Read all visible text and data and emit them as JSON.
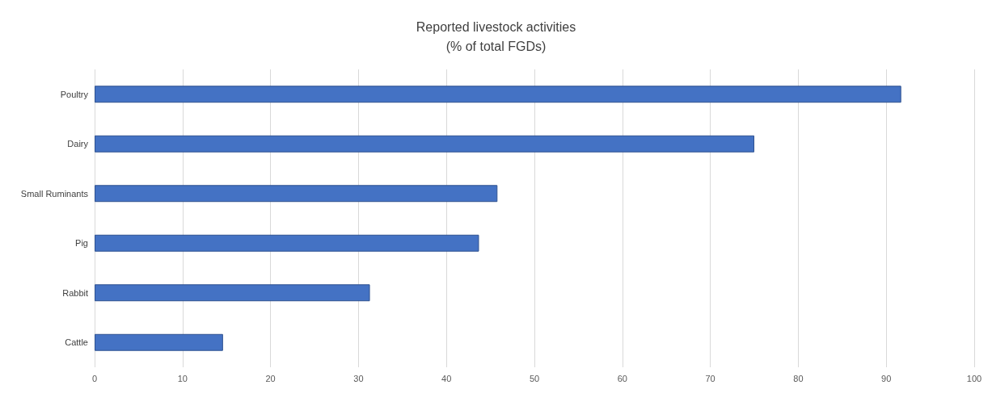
{
  "chart_data": {
    "type": "bar",
    "orientation": "horizontal",
    "title": "Reported livestock activities\n(% of total FGDs)",
    "categories": [
      "Poultry",
      "Dairy",
      "Small Ruminants",
      "Pig",
      "Rabbit",
      "Cattle"
    ],
    "values": [
      91.7,
      75.0,
      45.8,
      43.7,
      31.3,
      14.6
    ],
    "color": "#4472c4",
    "xlim": [
      0,
      100
    ],
    "xticks": [
      0,
      10,
      20,
      30,
      40,
      50,
      60,
      70,
      80,
      90,
      100
    ],
    "grid": "x"
  }
}
